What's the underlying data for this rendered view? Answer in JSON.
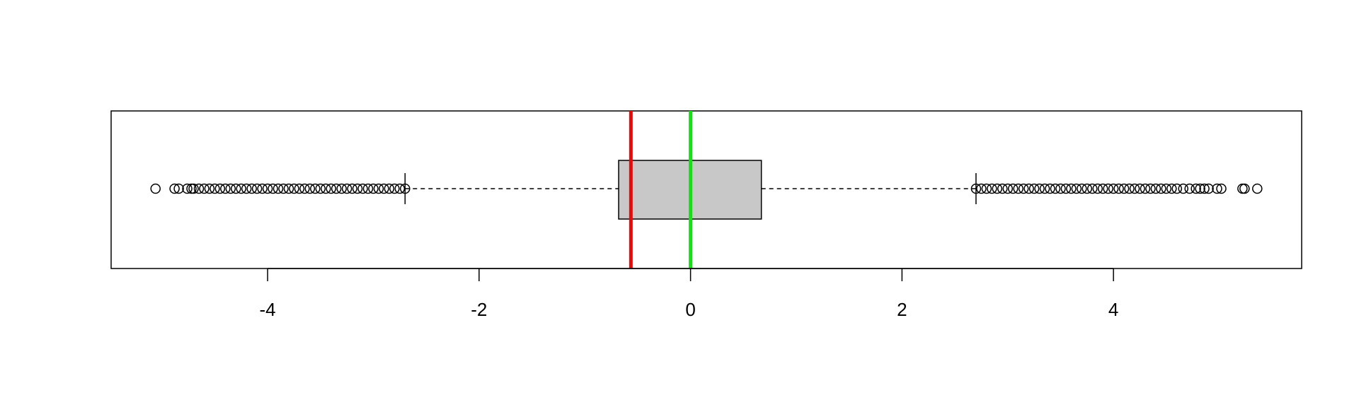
{
  "chart_data": {
    "type": "boxplot",
    "orientation": "horizontal",
    "xlim": [
      -5.48,
      5.78
    ],
    "xticks": [
      -4,
      -2,
      0,
      2,
      4
    ],
    "whisker_low": -2.7,
    "q1": -0.68,
    "median": 0,
    "q3": 0.67,
    "whisker_high": 2.7,
    "box_color": "#c8c8c8",
    "outliers": [
      -5.06,
      -4.88,
      -4.84,
      -4.76,
      -4.72,
      -4.7,
      -4.65,
      -4.6,
      -4.55,
      -4.5,
      -4.45,
      -4.4,
      -4.35,
      -4.3,
      -4.25,
      -4.2,
      -4.15,
      -4.1,
      -4.05,
      -4,
      -3.95,
      -3.9,
      -3.85,
      -3.8,
      -3.75,
      -3.7,
      -3.65,
      -3.6,
      -3.55,
      -3.5,
      -3.45,
      -3.4,
      -3.35,
      -3.3,
      -3.25,
      -3.2,
      -3.15,
      -3.1,
      -3.05,
      -3,
      -2.95,
      -2.9,
      -2.85,
      -2.8,
      -2.75,
      -2.7,
      2.7,
      2.75,
      2.8,
      2.85,
      2.9,
      2.95,
      3,
      3.05,
      3.1,
      3.15,
      3.2,
      3.25,
      3.3,
      3.35,
      3.4,
      3.45,
      3.5,
      3.55,
      3.6,
      3.65,
      3.7,
      3.75,
      3.8,
      3.85,
      3.9,
      3.95,
      4,
      4.05,
      4.1,
      4.15,
      4.2,
      4.25,
      4.3,
      4.35,
      4.4,
      4.45,
      4.5,
      4.55,
      4.6,
      4.66,
      4.72,
      4.78,
      4.82,
      4.86,
      4.9,
      4.98,
      5.02,
      5.22,
      5.24,
      5.36
    ],
    "reference_lines": [
      {
        "value": -0.564,
        "color": "#ff0000"
      },
      {
        "value": 0,
        "color": "#00ee00"
      }
    ]
  }
}
